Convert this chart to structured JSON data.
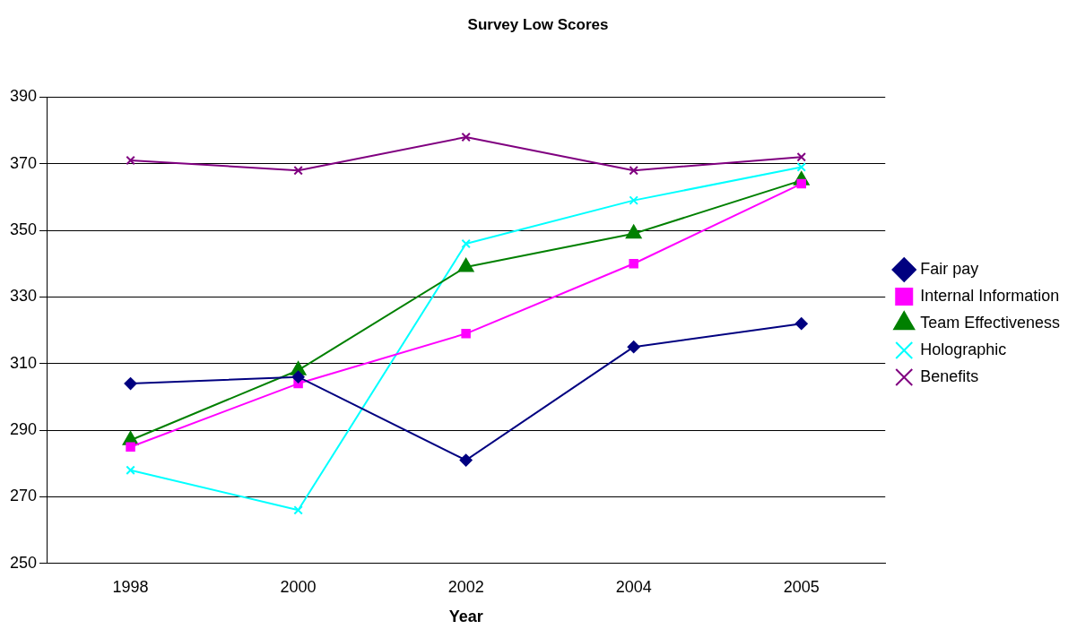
{
  "chart_data": {
    "type": "line",
    "title": "Survey Low Scores",
    "xlabel": "Year",
    "categories": [
      "1998",
      "2000",
      "2002",
      "2004",
      "2005"
    ],
    "series": [
      {
        "name": "Fair pay",
        "color": "#000080",
        "marker": "diamond",
        "values": [
          304,
          306,
          281,
          315,
          322
        ]
      },
      {
        "name": "Internal Information",
        "color": "#ff00ff",
        "marker": "square",
        "values": [
          285,
          304,
          319,
          340,
          364
        ]
      },
      {
        "name": "Team Effectiveness",
        "color": "#008000",
        "marker": "triangle",
        "values": [
          287,
          308,
          339,
          349,
          365
        ]
      },
      {
        "name": "Holographic",
        "color": "#00ffff",
        "marker": "cross",
        "values": [
          278,
          266,
          346,
          359,
          369
        ]
      },
      {
        "name": "Benefits",
        "color": "#800080",
        "marker": "cross",
        "values": [
          371,
          368,
          378,
          368,
          372
        ]
      }
    ],
    "ylim": [
      250,
      390
    ],
    "yticks": [
      250,
      270,
      290,
      310,
      330,
      350,
      370,
      390
    ],
    "grid": "y",
    "legend": "right"
  }
}
